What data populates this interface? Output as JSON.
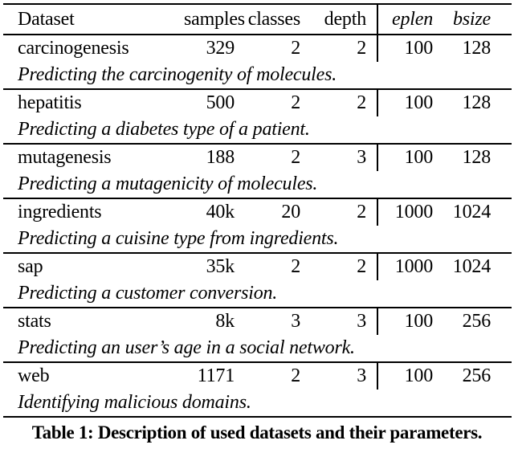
{
  "table": {
    "headers": [
      "Dataset",
      "samples",
      "classes",
      "depth",
      "eplen",
      "bsize"
    ],
    "rows": [
      {
        "dataset": "carcinogenesis",
        "samples": "329",
        "classes": "2",
        "depth": "2",
        "eplen": "100",
        "bsize": "128",
        "description": "Predicting the carcinogenity of molecules."
      },
      {
        "dataset": "hepatitis",
        "samples": "500",
        "classes": "2",
        "depth": "2",
        "eplen": "100",
        "bsize": "128",
        "description": "Predicting a diabetes type of a patient."
      },
      {
        "dataset": "mutagenesis",
        "samples": "188",
        "classes": "2",
        "depth": "3",
        "eplen": "100",
        "bsize": "128",
        "description": "Predicting a mutagenicity of molecules."
      },
      {
        "dataset": "ingredients",
        "samples": "40k",
        "classes": "20",
        "depth": "2",
        "eplen": "1000",
        "bsize": "1024",
        "description": "Predicting a cuisine type from ingredients."
      },
      {
        "dataset": "sap",
        "samples": "35k",
        "classes": "2",
        "depth": "2",
        "eplen": "1000",
        "bsize": "1024",
        "description": "Predicting a customer conversion."
      },
      {
        "dataset": "stats",
        "samples": "8k",
        "classes": "3",
        "depth": "3",
        "eplen": "100",
        "bsize": "256",
        "description": "Predicting an user’s age in a social network."
      },
      {
        "dataset": "web",
        "samples": "1171",
        "classes": "2",
        "depth": "3",
        "eplen": "100",
        "bsize": "256",
        "description": "Identifying malicious domains."
      }
    ]
  },
  "caption": {
    "label": "Table 1:",
    "text": "Description of used datasets and their parameters."
  },
  "colors": {
    "text": "#000000",
    "background": "#ffffff",
    "rule": "#000000"
  }
}
